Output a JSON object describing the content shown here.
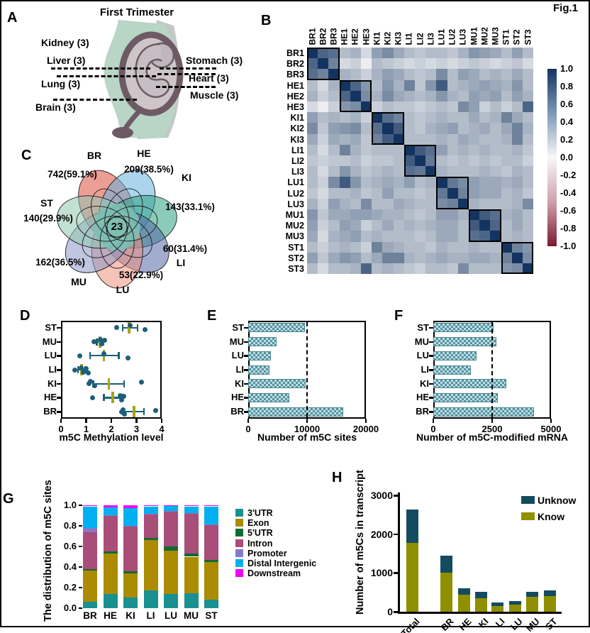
{
  "figure_label": "Fig.1",
  "panelA": {
    "label": "A",
    "title": "First Trimester",
    "organs": [
      {
        "name": "Kidney (3)"
      },
      {
        "name": "Liver (3)"
      },
      {
        "name": "Lung (3)"
      },
      {
        "name": "Brain (3)"
      },
      {
        "name": "Stomach (3)"
      },
      {
        "name": "Heart (3)"
      },
      {
        "name": "Muscle (3)"
      }
    ]
  },
  "chart_data": [
    {
      "panel_label": "B",
      "type": "heatmap",
      "labels": [
        "BR1",
        "BR2",
        "BR3",
        "HE1",
        "HE2",
        "HE3",
        "KI1",
        "KI2",
        "KI3",
        "LI1",
        "LI2",
        "LI3",
        "LU1",
        "LU2",
        "LU3",
        "MU1",
        "MU2",
        "MU3",
        "ST1",
        "ST2",
        "ST3"
      ],
      "colorbar_ticks": [
        "1.0",
        "0.8",
        "0.6",
        "0.4",
        "0.2",
        "0.0",
        "-0.2",
        "-0.4",
        "-0.6",
        "-0.8",
        "-1.0"
      ],
      "color_high": "#133460",
      "color_mid": "#f7f7f7",
      "color_low": "#7a1a31",
      "matrix": [
        [
          1.0,
          0.75,
          0.7,
          0.3,
          0.35,
          0.15,
          0.45,
          0.55,
          0.4,
          0.3,
          0.25,
          0.3,
          0.3,
          0.25,
          0.35,
          0.5,
          0.45,
          0.4,
          0.3,
          0.45,
          0.3
        ],
        [
          0.75,
          1.0,
          0.6,
          0.15,
          0.2,
          0.05,
          0.3,
          0.25,
          0.2,
          0.15,
          0.2,
          0.15,
          0.2,
          0.15,
          0.2,
          0.25,
          0.2,
          0.15,
          0.2,
          0.25,
          0.15
        ],
        [
          0.7,
          0.6,
          1.0,
          0.35,
          0.3,
          0.2,
          0.35,
          0.45,
          0.4,
          0.3,
          0.25,
          0.3,
          0.55,
          0.3,
          0.45,
          0.4,
          0.3,
          0.35,
          0.3,
          0.4,
          0.3
        ],
        [
          0.3,
          0.15,
          0.35,
          1.0,
          0.75,
          0.5,
          0.3,
          0.5,
          0.35,
          0.6,
          0.25,
          0.5,
          0.8,
          0.3,
          0.35,
          0.4,
          0.45,
          0.4,
          0.35,
          0.5,
          0.3
        ],
        [
          0.35,
          0.2,
          0.3,
          0.75,
          1.0,
          0.55,
          0.35,
          0.55,
          0.4,
          0.35,
          0.3,
          0.35,
          0.5,
          0.35,
          0.3,
          0.45,
          0.4,
          0.45,
          0.3,
          0.45,
          0.35
        ],
        [
          0.15,
          0.05,
          0.2,
          0.5,
          0.55,
          1.0,
          0.2,
          0.3,
          0.25,
          0.25,
          0.2,
          0.25,
          0.3,
          0.25,
          0.55,
          0.45,
          0.2,
          0.3,
          0.2,
          0.3,
          0.75
        ],
        [
          0.45,
          0.3,
          0.35,
          0.3,
          0.35,
          0.2,
          1.0,
          0.7,
          0.6,
          0.3,
          0.25,
          0.3,
          0.35,
          0.3,
          0.3,
          0.4,
          0.3,
          0.35,
          0.6,
          0.4,
          0.3
        ],
        [
          0.55,
          0.25,
          0.45,
          0.5,
          0.55,
          0.3,
          0.7,
          1.0,
          0.8,
          0.3,
          0.25,
          0.35,
          0.4,
          0.45,
          0.3,
          0.35,
          0.4,
          0.3,
          0.4,
          0.6,
          0.35
        ],
        [
          0.4,
          0.2,
          0.4,
          0.35,
          0.4,
          0.25,
          0.6,
          0.8,
          1.0,
          0.3,
          0.3,
          0.3,
          0.35,
          0.3,
          0.4,
          0.35,
          0.3,
          0.3,
          0.35,
          0.6,
          0.3
        ],
        [
          0.3,
          0.15,
          0.3,
          0.6,
          0.35,
          0.25,
          0.3,
          0.3,
          0.3,
          1.0,
          0.8,
          0.7,
          0.45,
          0.3,
          0.35,
          0.3,
          0.35,
          0.3,
          0.3,
          0.35,
          0.25
        ],
        [
          0.25,
          0.2,
          0.25,
          0.25,
          0.3,
          0.2,
          0.25,
          0.25,
          0.3,
          0.8,
          1.0,
          0.65,
          0.3,
          0.25,
          0.3,
          0.25,
          0.3,
          0.25,
          0.3,
          0.3,
          0.2
        ],
        [
          0.3,
          0.15,
          0.3,
          0.5,
          0.35,
          0.25,
          0.3,
          0.35,
          0.3,
          0.7,
          0.65,
          1.0,
          0.35,
          0.3,
          0.3,
          0.3,
          0.35,
          0.3,
          0.25,
          0.35,
          0.3
        ],
        [
          0.3,
          0.2,
          0.55,
          0.8,
          0.5,
          0.3,
          0.35,
          0.4,
          0.35,
          0.45,
          0.3,
          0.35,
          1.0,
          0.65,
          0.55,
          0.45,
          0.4,
          0.4,
          0.35,
          0.4,
          0.3
        ],
        [
          0.25,
          0.15,
          0.3,
          0.3,
          0.35,
          0.25,
          0.3,
          0.45,
          0.3,
          0.3,
          0.25,
          0.3,
          0.65,
          1.0,
          0.6,
          0.45,
          0.4,
          0.4,
          0.3,
          0.35,
          0.25
        ],
        [
          0.35,
          0.2,
          0.45,
          0.35,
          0.3,
          0.55,
          0.3,
          0.3,
          0.4,
          0.35,
          0.3,
          0.3,
          0.55,
          0.6,
          1.0,
          0.35,
          0.3,
          0.3,
          0.3,
          0.35,
          0.55
        ],
        [
          0.5,
          0.25,
          0.4,
          0.4,
          0.45,
          0.45,
          0.4,
          0.35,
          0.35,
          0.3,
          0.25,
          0.3,
          0.45,
          0.45,
          0.35,
          1.0,
          0.8,
          0.7,
          0.35,
          0.4,
          0.3
        ],
        [
          0.45,
          0.2,
          0.3,
          0.45,
          0.4,
          0.2,
          0.3,
          0.4,
          0.3,
          0.35,
          0.3,
          0.35,
          0.4,
          0.4,
          0.3,
          0.8,
          1.0,
          0.75,
          0.3,
          0.4,
          0.3
        ],
        [
          0.4,
          0.15,
          0.35,
          0.4,
          0.45,
          0.3,
          0.35,
          0.3,
          0.3,
          0.3,
          0.25,
          0.3,
          0.4,
          0.4,
          0.3,
          0.7,
          0.75,
          1.0,
          0.3,
          0.35,
          0.3
        ],
        [
          0.3,
          0.2,
          0.3,
          0.35,
          0.3,
          0.2,
          0.6,
          0.4,
          0.35,
          0.3,
          0.3,
          0.25,
          0.35,
          0.3,
          0.3,
          0.35,
          0.3,
          0.3,
          1.0,
          0.6,
          0.5
        ],
        [
          0.45,
          0.25,
          0.4,
          0.5,
          0.45,
          0.3,
          0.4,
          0.6,
          0.6,
          0.35,
          0.3,
          0.35,
          0.4,
          0.35,
          0.35,
          0.4,
          0.4,
          0.35,
          0.6,
          1.0,
          0.55
        ],
        [
          0.3,
          0.15,
          0.3,
          0.3,
          0.35,
          0.75,
          0.3,
          0.35,
          0.3,
          0.25,
          0.2,
          0.3,
          0.3,
          0.25,
          0.55,
          0.3,
          0.3,
          0.3,
          0.5,
          0.55,
          1.0
        ]
      ]
    },
    {
      "panel_label": "C",
      "type": "venn",
      "center_value": "23",
      "sets": [
        {
          "name": "BR",
          "annotation": "742(59.1%)",
          "color": "#df4f3d"
        },
        {
          "name": "HE",
          "annotation": "209(38.5%)",
          "color": "#64b2dc"
        },
        {
          "name": "KI",
          "annotation": "143(33.1%)",
          "color": "#2ba181"
        },
        {
          "name": "LI",
          "annotation": "60(31.4%)",
          "color": "#5668a6"
        },
        {
          "name": "LU",
          "annotation": "53(22.9%)",
          "color": "#ec917e"
        },
        {
          "name": "MU",
          "annotation": "162(36.5%)",
          "color": "#8d96c6"
        },
        {
          "name": "ST",
          "annotation": "140(29.9%)",
          "color": "#92c7b1"
        }
      ]
    },
    {
      "panel_label": "D",
      "type": "scatter",
      "xlabel": "m5C Methylation level",
      "xlim": [
        0,
        4
      ],
      "xticks": [
        "0",
        "1",
        "2",
        "3",
        "4"
      ],
      "point_color": "#1c5f78",
      "mean_color": "#a6a417",
      "rows": [
        {
          "category": "ST",
          "points": [
            2.2,
            2.75,
            3.35
          ],
          "mean": 2.7,
          "err_lo": 2.45,
          "err_hi": 3.05
        },
        {
          "category": "MU",
          "points": [
            1.3,
            1.55,
            1.62,
            1.72
          ],
          "mean": 1.55,
          "err_lo": 1.42,
          "err_hi": 1.68
        },
        {
          "category": "LU",
          "points": [
            0.75,
            1.7,
            2.65
          ],
          "mean": 1.7,
          "err_lo": 1.15,
          "err_hi": 2.3
        },
        {
          "category": "LI",
          "points": [
            0.55,
            0.8,
            0.88,
            1.0,
            1.08
          ],
          "mean": 0.82,
          "err_lo": 0.68,
          "err_hi": 0.97
        },
        {
          "category": "KI",
          "points": [
            1.1,
            1.18,
            1.35,
            3.2
          ],
          "mean": 1.9,
          "err_lo": 1.28,
          "err_hi": 2.5
        },
        {
          "category": "HE",
          "points": [
            1.25,
            2.35,
            2.42,
            2.48
          ],
          "mean": 2.05,
          "err_lo": 1.7,
          "err_hi": 2.45
        },
        {
          "category": "BR",
          "points": [
            2.4,
            2.46,
            2.52,
            3.75
          ],
          "mean": 2.9,
          "err_lo": 2.5,
          "err_hi": 3.3
        }
      ]
    },
    {
      "panel_label": "E",
      "type": "bar",
      "orientation": "horizontal",
      "xlabel": "Number of m5C sites",
      "xlim": [
        0,
        20000
      ],
      "xticks": [
        "0",
        "10000",
        "20000"
      ],
      "refline": 10000,
      "categories": [
        "ST",
        "MU",
        "LU",
        "LI",
        "KI",
        "HE",
        "BR"
      ],
      "values": [
        9600,
        4800,
        3850,
        3600,
        9700,
        7000,
        16100
      ]
    },
    {
      "panel_label": "F",
      "type": "bar",
      "orientation": "horizontal",
      "xlabel": "Number of m5C-modified mRNA",
      "xlim": [
        0,
        5000
      ],
      "xticks": [
        "0",
        "2500",
        "5000"
      ],
      "refline": 2500,
      "categories": [
        "ST",
        "MU",
        "LU",
        "LI",
        "KI",
        "HE",
        "BR"
      ],
      "values": [
        2550,
        2670,
        1850,
        1600,
        3090,
        2730,
        4270
      ]
    },
    {
      "panel_label": "G",
      "type": "stacked-bar",
      "ylabel": "The distribution of m5C sites",
      "ylim": [
        0,
        1
      ],
      "yticks": [
        "1.0",
        "0.8",
        "0.6",
        "0.4",
        "0.2",
        "0.0"
      ],
      "categories": [
        "BR",
        "HE",
        "KI",
        "LI",
        "LU",
        "MU",
        "ST"
      ],
      "segments": [
        {
          "name": "3'UTR",
          "color": "#1a9090"
        },
        {
          "name": "Exon",
          "color": "#ab8b00"
        },
        {
          "name": "5'UTR",
          "color": "#106b33"
        },
        {
          "name": "Intron",
          "color": "#a94d79"
        },
        {
          "name": "Promoter",
          "color": "#8878c8"
        },
        {
          "name": "Distal Intergenic",
          "color": "#00b0f0"
        },
        {
          "name": "Downstream",
          "color": "#f000f0"
        }
      ],
      "values": {
        "BR": [
          0.065,
          0.3,
          0.012,
          0.363,
          0.04,
          0.21,
          0.01
        ],
        "HE": [
          0.135,
          0.395,
          0.025,
          0.345,
          0.005,
          0.075,
          0.02
        ],
        "KI": [
          0.105,
          0.235,
          0.02,
          0.435,
          0.005,
          0.175,
          0.025
        ],
        "LI": [
          0.175,
          0.49,
          0.02,
          0.23,
          0.005,
          0.07,
          0.01
        ],
        "LU": [
          0.135,
          0.425,
          0.04,
          0.34,
          0.005,
          0.045,
          0.01
        ],
        "MU": [
          0.145,
          0.355,
          0.03,
          0.39,
          0.005,
          0.065,
          0.01
        ],
        "ST": [
          0.085,
          0.365,
          0.02,
          0.34,
          0.005,
          0.175,
          0.01
        ]
      }
    },
    {
      "panel_label": "H",
      "type": "stacked-bar",
      "ylabel": "Number of m5Cs in transcript",
      "ylim": [
        0,
        3000
      ],
      "yticks": [
        "0",
        "1000",
        "2000",
        "3000"
      ],
      "categories": [
        "Total",
        "BR",
        "HE",
        "KI",
        "LI",
        "LU",
        "MU",
        "ST"
      ],
      "series": [
        {
          "name": "Know",
          "color": "#8f8f00",
          "values": [
            1780,
            1000,
            440,
            350,
            150,
            180,
            385,
            400
          ]
        },
        {
          "name": "Unknow",
          "color": "#134c5e",
          "values": [
            860,
            440,
            165,
            160,
            90,
            90,
            130,
            150
          ]
        }
      ]
    }
  ]
}
